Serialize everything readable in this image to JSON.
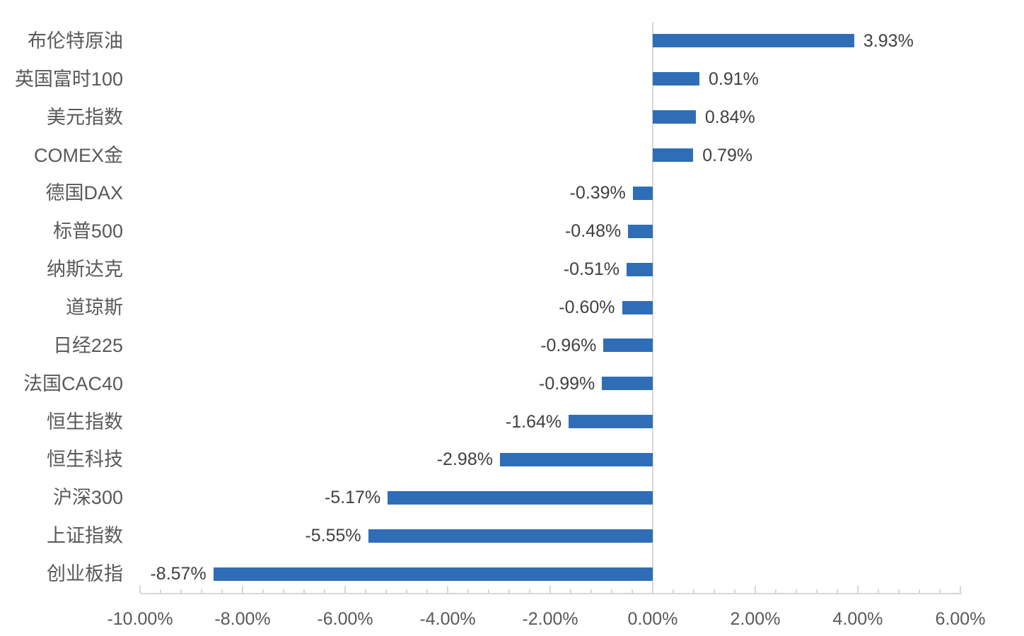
{
  "chart_data": {
    "type": "bar",
    "orientation": "horizontal",
    "title": "",
    "categories": [
      "布伦特原油",
      "英国富时100",
      "美元指数",
      "COMEX金",
      "德国DAX",
      "标普500",
      "纳斯达克",
      "道琼斯",
      "日经225",
      "法国CAC40",
      "恒生指数",
      "恒生科技",
      "沪深300",
      "上证指数",
      "创业板指"
    ],
    "values": [
      3.93,
      0.91,
      0.84,
      0.79,
      -0.39,
      -0.48,
      -0.51,
      -0.6,
      -0.96,
      -0.99,
      -1.64,
      -2.98,
      -5.17,
      -5.55,
      -8.57
    ],
    "value_labels": [
      "3.93%",
      "0.91%",
      "0.84%",
      "0.79%",
      "-0.39%",
      "-0.48%",
      "-0.51%",
      "-0.60%",
      "-0.96%",
      "-0.99%",
      "-1.64%",
      "-2.98%",
      "-5.17%",
      "-5.55%",
      "-8.57%"
    ],
    "x_axis": {
      "min": -10,
      "max": 6,
      "major_step": 2,
      "minor_step": 0.4,
      "tick_labels": [
        "-10.00%",
        "-8.00%",
        "-6.00%",
        "-4.00%",
        "-2.00%",
        "0.00%",
        "2.00%",
        "4.00%",
        "6.00%"
      ]
    },
    "grid": false,
    "legend": false,
    "colors": {
      "bar": "#2F6EB7",
      "axis": "#D6D6D6",
      "category_label": "#595959",
      "value_label": "#404040",
      "tick_label": "#595959",
      "background": "#FFFFFF"
    }
  }
}
